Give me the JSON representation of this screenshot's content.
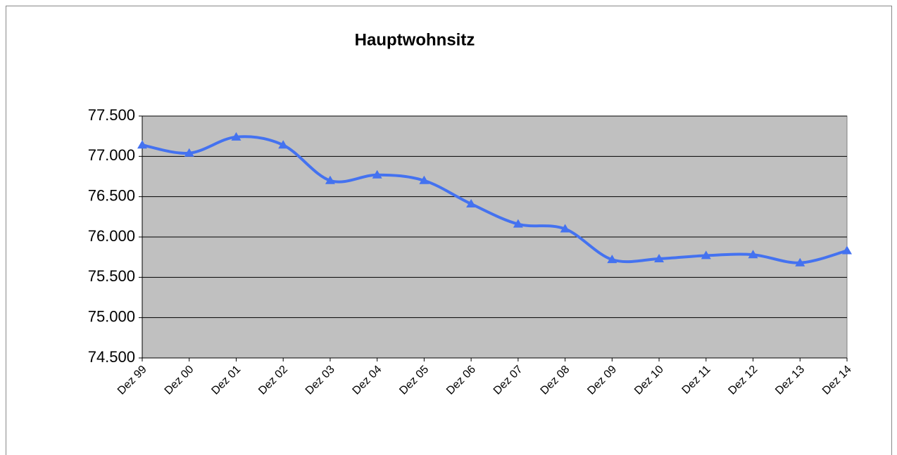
{
  "chart_data": {
    "type": "line",
    "title": "Hauptwohnsitz",
    "categories": [
      "Dez 99",
      "Dez 00",
      "Dez 01",
      "Dez 02",
      "Dez 03",
      "Dez 04",
      "Dez 05",
      "Dez 06",
      "Dez 07",
      "Dez 08",
      "Dez 09",
      "Dez 10",
      "Dez 11",
      "Dez 12",
      "Dez 13",
      "Dez 14"
    ],
    "series": [
      {
        "name": "Hauptwohnsitz",
        "color": "#4472f0",
        "values": [
          77140,
          77040,
          77240,
          77140,
          76700,
          76770,
          76700,
          76410,
          76160,
          76100,
          75720,
          75730,
          75770,
          75780,
          75680,
          75830
        ]
      }
    ],
    "ylim": [
      74500,
      77500
    ],
    "yticks": [
      {
        "value": 74500,
        "label": "74.500"
      },
      {
        "value": 75000,
        "label": "75.000"
      },
      {
        "value": 75500,
        "label": "75.500"
      },
      {
        "value": 76000,
        "label": "76.000"
      },
      {
        "value": 76500,
        "label": "76.500"
      },
      {
        "value": 77000,
        "label": "77.000"
      },
      {
        "value": 77500,
        "label": "77.500"
      }
    ],
    "grid": true,
    "plot_background": "#c0c0c0"
  }
}
